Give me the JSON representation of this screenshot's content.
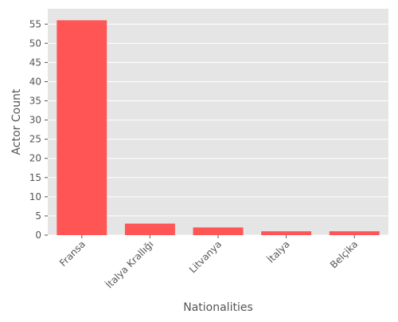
{
  "chart_data": {
    "type": "bar",
    "categories": [
      "Fransa",
      "İtalya Krallığı",
      "Litvanya",
      "İtalya",
      "Belçika"
    ],
    "values": [
      56,
      3,
      2,
      1,
      1
    ],
    "xlabel": "Nationalities",
    "ylabel": "Actor Count",
    "ylim": [
      0,
      59
    ],
    "yticks": [
      0,
      5,
      10,
      15,
      20,
      25,
      30,
      35,
      40,
      45,
      50,
      55
    ],
    "grid": true,
    "bar_color": "#ff5555",
    "plot_background": "#e5e5e5",
    "grid_color": "#ffffff"
  }
}
